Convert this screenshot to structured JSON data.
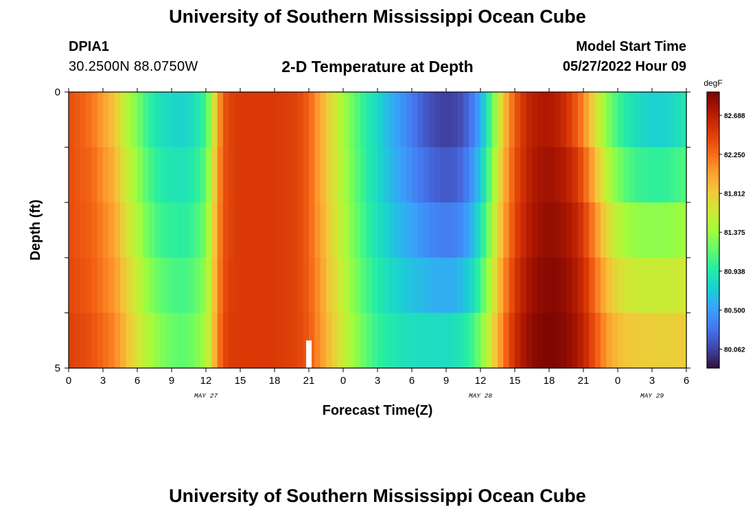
{
  "header": {
    "title": "University of Southern Mississippi Ocean Cube",
    "station": "DPIA1",
    "coordinates": "30.2500N  88.0750W",
    "subtitle": "2-D Temperature at Depth",
    "start_label": "Model Start Time",
    "start_value": "05/27/2022 Hour 09"
  },
  "footer": {
    "title": "University of Southern Mississippi Ocean Cube"
  },
  "chart_data": {
    "type": "heatmap",
    "xlabel": "Forecast Time(Z)",
    "ylabel": "Depth (ft)",
    "x_hours": [
      0,
      54
    ],
    "x_ticks": [
      "0",
      "3",
      "6",
      "9",
      "12",
      "15",
      "18",
      "21",
      "0",
      "3",
      "6",
      "9",
      "12",
      "15",
      "18",
      "21",
      "0",
      "3",
      "6"
    ],
    "day_labels": [
      {
        "text": "MAY 27",
        "hour": 12
      },
      {
        "text": "MAY 28",
        "hour": 36
      },
      {
        "text": "MAY 29",
        "hour": 51
      }
    ],
    "y_ticks": [
      "0",
      "5"
    ],
    "ylim": [
      0,
      5
    ],
    "colorbar": {
      "unit": "degF",
      "min": 79.85,
      "max": 82.95,
      "tick_labels": [
        "82.688",
        "82.250",
        "81.812",
        "81.375",
        "80.938",
        "80.500",
        "80.062"
      ],
      "colors": [
        "#30123b",
        "#4145ab",
        "#4675ed",
        "#39a2fc",
        "#1bcfd4",
        "#24eca6",
        "#61fc6c",
        "#a4fc3b",
        "#d1e834",
        "#f3c63a",
        "#fe9b2d",
        "#f36315",
        "#d93806",
        "#b11901",
        "#7a0403"
      ]
    },
    "depth_rows": [
      0,
      1,
      2,
      3,
      4,
      5
    ],
    "time_hours": [
      0,
      2,
      4,
      5,
      6,
      7,
      8,
      9,
      10,
      11,
      12,
      12.5,
      13,
      13.5,
      14,
      15,
      18,
      20,
      21,
      22,
      23,
      24,
      25,
      26,
      27,
      28,
      29,
      30,
      31,
      32,
      33,
      34,
      35,
      36,
      37,
      38,
      39,
      40,
      41,
      42,
      43,
      44,
      45,
      46,
      47,
      48,
      49,
      50,
      51,
      52,
      53,
      54
    ],
    "temperature_degF": [
      [
        82.4,
        82.2,
        81.8,
        81.45,
        81.2,
        80.95,
        80.82,
        80.75,
        80.72,
        80.8,
        81.0,
        81.4,
        81.9,
        82.3,
        82.45,
        82.5,
        82.5,
        82.45,
        82.3,
        82.0,
        81.7,
        81.4,
        81.15,
        80.95,
        80.8,
        80.6,
        80.45,
        80.3,
        80.15,
        80.05,
        80.0,
        80.05,
        80.2,
        80.5,
        81.1,
        81.8,
        82.3,
        82.6,
        82.7,
        82.7,
        82.6,
        82.35,
        82.05,
        81.6,
        81.25,
        81.0,
        80.85,
        80.78,
        80.7,
        80.7,
        80.8,
        80.9
      ],
      [
        82.4,
        82.25,
        81.9,
        81.55,
        81.3,
        81.05,
        80.9,
        80.85,
        80.82,
        80.9,
        81.1,
        81.5,
        82.0,
        82.35,
        82.45,
        82.5,
        82.5,
        82.45,
        82.3,
        82.0,
        81.7,
        81.42,
        81.18,
        80.98,
        80.8,
        80.62,
        80.48,
        80.35,
        80.22,
        80.12,
        80.08,
        80.1,
        80.28,
        80.6,
        81.2,
        81.9,
        82.35,
        82.62,
        82.75,
        82.78,
        82.72,
        82.55,
        82.25,
        81.8,
        81.4,
        81.12,
        80.95,
        80.85,
        80.8,
        80.8,
        80.85,
        80.95
      ],
      [
        82.4,
        82.3,
        82.0,
        81.65,
        81.4,
        81.15,
        81.0,
        80.95,
        80.92,
        81.0,
        81.2,
        81.6,
        82.05,
        82.35,
        82.45,
        82.5,
        82.5,
        82.45,
        82.3,
        82.0,
        81.72,
        81.45,
        81.2,
        81.0,
        80.82,
        80.68,
        80.55,
        80.45,
        80.35,
        80.28,
        80.25,
        80.28,
        80.45,
        80.8,
        81.35,
        81.95,
        82.4,
        82.65,
        82.78,
        82.82,
        82.78,
        82.68,
        82.45,
        82.05,
        81.65,
        81.4,
        81.25,
        81.2,
        81.2,
        81.2,
        81.25,
        81.3
      ],
      [
        82.4,
        82.3,
        82.05,
        81.75,
        81.5,
        81.25,
        81.1,
        81.05,
        81.02,
        81.1,
        81.3,
        81.65,
        82.05,
        82.35,
        82.45,
        82.5,
        82.5,
        82.45,
        82.3,
        82.05,
        81.75,
        81.5,
        81.25,
        81.05,
        80.9,
        80.78,
        80.68,
        80.6,
        80.52,
        80.45,
        80.42,
        80.45,
        80.6,
        80.95,
        81.45,
        82.05,
        82.45,
        82.7,
        82.82,
        82.88,
        82.85,
        82.75,
        82.55,
        82.2,
        81.85,
        81.6,
        81.5,
        81.45,
        81.45,
        81.45,
        81.45,
        81.5
      ],
      [
        82.45,
        82.35,
        82.1,
        81.85,
        81.6,
        81.4,
        81.25,
        81.15,
        81.12,
        81.2,
        81.4,
        81.7,
        82.1,
        82.38,
        82.48,
        82.5,
        82.5,
        82.45,
        82.32,
        82.08,
        81.8,
        81.55,
        81.32,
        81.12,
        80.98,
        80.88,
        80.8,
        80.75,
        80.72,
        80.7,
        80.7,
        80.75,
        80.88,
        81.15,
        81.6,
        82.15,
        82.55,
        82.78,
        82.9,
        82.92,
        82.9,
        82.82,
        82.62,
        82.3,
        82.0,
        81.8,
        81.72,
        81.7,
        81.7,
        81.7,
        81.72,
        81.75
      ],
      [
        82.5,
        82.4,
        82.2,
        81.95,
        81.7,
        81.5,
        81.35,
        81.25,
        81.2,
        81.28,
        81.45,
        81.75,
        82.15,
        82.4,
        82.5,
        82.5,
        82.5,
        82.45,
        82.35,
        82.1,
        81.85,
        81.6,
        81.4,
        81.2,
        81.05,
        80.98,
        80.95,
        80.95,
        80.95,
        80.95,
        80.95,
        81.0,
        81.1,
        81.35,
        81.75,
        82.25,
        82.62,
        82.82,
        82.92,
        82.94,
        82.92,
        82.85,
        82.68,
        82.42,
        82.15,
        81.98,
        81.92,
        81.9,
        81.88,
        81.85,
        81.85,
        81.85
      ]
    ],
    "marker": {
      "hour": 21,
      "depth_from": 4.5,
      "depth_to": 5
    }
  }
}
